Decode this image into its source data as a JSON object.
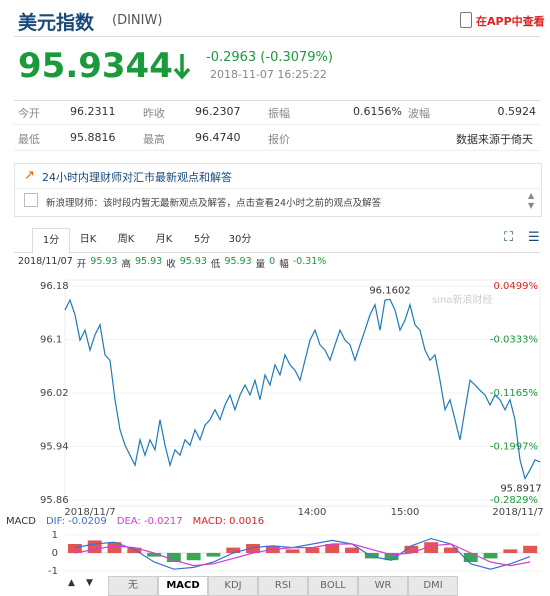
{
  "header": {
    "title": "美元指数",
    "code": "(DINIW)",
    "app_link": "在APP中查看"
  },
  "quote": {
    "price": "95.9344",
    "change": "-0.2963 (-0.3079%)",
    "time": "2018-11-07 16:25:22"
  },
  "stats": [
    [
      {
        "label": "今开",
        "value": "96.2311"
      },
      {
        "label": "昨收",
        "value": "96.2307"
      },
      {
        "label": "振幅",
        "value": "0.6156%"
      },
      {
        "label": "波幅",
        "value": "0.5924"
      }
    ],
    [
      {
        "label": "最低",
        "value": "95.8816"
      },
      {
        "label": "最高",
        "value": "96.4740"
      },
      {
        "label": "报价"
      }
    ]
  ],
  "source": "数据来源于倚天",
  "advisor": {
    "heading": "24小时内理财师对汇市最新观点和解答",
    "message": "新浪理财师：该时段内暂无最新观点及解答，点击查看24小时之前的观点及解答"
  },
  "chart_tabs": [
    "1分",
    "日K",
    "周K",
    "月K",
    "5分",
    "30分"
  ],
  "active_chart_tab": 0,
  "bar_info": {
    "date": "2018/11/07",
    "fields": [
      {
        "label": "开",
        "value": "95.93"
      },
      {
        "label": "高",
        "value": "95.93"
      },
      {
        "label": "收",
        "value": "95.93"
      },
      {
        "label": "低",
        "value": "95.93"
      },
      {
        "label": "量",
        "value": "0"
      },
      {
        "label": "幅",
        "value": "-0.31%"
      }
    ]
  },
  "price_chart": {
    "type": "line",
    "color": "#1f7ab8",
    "ylim": [
      95.86,
      96.18
    ],
    "yticks": [
      96.18,
      96.1,
      96.02,
      95.94,
      95.86
    ],
    "pct_ticks": [
      "0.0499%",
      "-0.0333%",
      "-0.1165%",
      "-0.1997%",
      "-0.2829%"
    ],
    "x_labels": [
      "2018/11/7",
      "14:00",
      "15:00",
      "2018/11/7"
    ],
    "max_label": "96.1602",
    "min_label": "95.8917",
    "watermark": "sina新浪财经",
    "values": [
      96.144,
      96.159,
      96.137,
      96.099,
      96.114,
      96.084,
      96.107,
      96.122,
      96.077,
      96.069,
      96.01,
      95.965,
      95.942,
      95.927,
      95.912,
      95.95,
      95.927,
      95.95,
      95.935,
      95.98,
      95.942,
      95.912,
      95.935,
      95.927,
      95.95,
      95.942,
      95.965,
      95.95,
      95.972,
      95.98,
      95.995,
      95.98,
      96.002,
      96.017,
      95.995,
      96.017,
      96.032,
      96.017,
      96.039,
      96.01,
      96.047,
      96.032,
      96.062,
      96.047,
      96.077,
      96.062,
      96.054,
      96.039,
      96.069,
      96.099,
      96.114,
      96.092,
      96.084,
      96.069,
      96.092,
      96.114,
      96.099,
      96.092,
      96.069,
      96.092,
      96.114,
      96.137,
      96.152,
      96.114,
      96.159,
      96.16,
      96.144,
      96.114,
      96.129,
      96.152,
      96.122,
      96.114,
      96.084,
      96.069,
      96.077,
      96.039,
      95.995,
      96.01,
      95.98,
      95.95,
      95.995,
      96.039,
      96.032,
      96.024,
      96.017,
      96.002,
      96.017,
      96.01,
      95.995,
      96.01,
      95.98,
      95.92,
      95.892,
      95.905,
      95.92,
      95.917
    ]
  },
  "macd": {
    "legend": "MACD",
    "dif": "DIF: -0.0209",
    "dea": "DEA: -0.0217",
    "macd_value": "MACD: 0.0016",
    "ylim": [
      -1.5,
      1.5
    ],
    "yticks": [
      1,
      0,
      -1
    ],
    "histogram": [
      0.5,
      0.7,
      0.6,
      0.3,
      -0.2,
      -0.5,
      -0.4,
      -0.2,
      0.3,
      0.5,
      0.4,
      0.2,
      0.3,
      0.5,
      0.3,
      -0.3,
      -0.4,
      0.4,
      0.6,
      0.3,
      -0.5,
      -0.3,
      0.2,
      0.4
    ],
    "dif_line": [
      0.3,
      0.5,
      0.6,
      0.2,
      -0.5,
      -0.9,
      -0.8,
      -0.5,
      0,
      0.3,
      0.4,
      0.3,
      0.5,
      0.7,
      0.5,
      -0.2,
      -0.4,
      0.4,
      0.8,
      0.5,
      -0.6,
      -0.9,
      -0.6,
      -0.2
    ],
    "dea_line": [
      0,
      0.2,
      0.4,
      0.3,
      0,
      -0.4,
      -0.7,
      -0.6,
      -0.3,
      0,
      0.2,
      0.3,
      0.3,
      0.5,
      0.5,
      0.2,
      -0.1,
      0,
      0.4,
      0.5,
      0,
      -0.5,
      -0.7,
      -0.5
    ]
  },
  "indicator_tabs": [
    "无",
    "MACD",
    "KDJ",
    "RSI",
    "BOLL",
    "WR",
    "DMI"
  ],
  "active_indicator_tab": 1
}
